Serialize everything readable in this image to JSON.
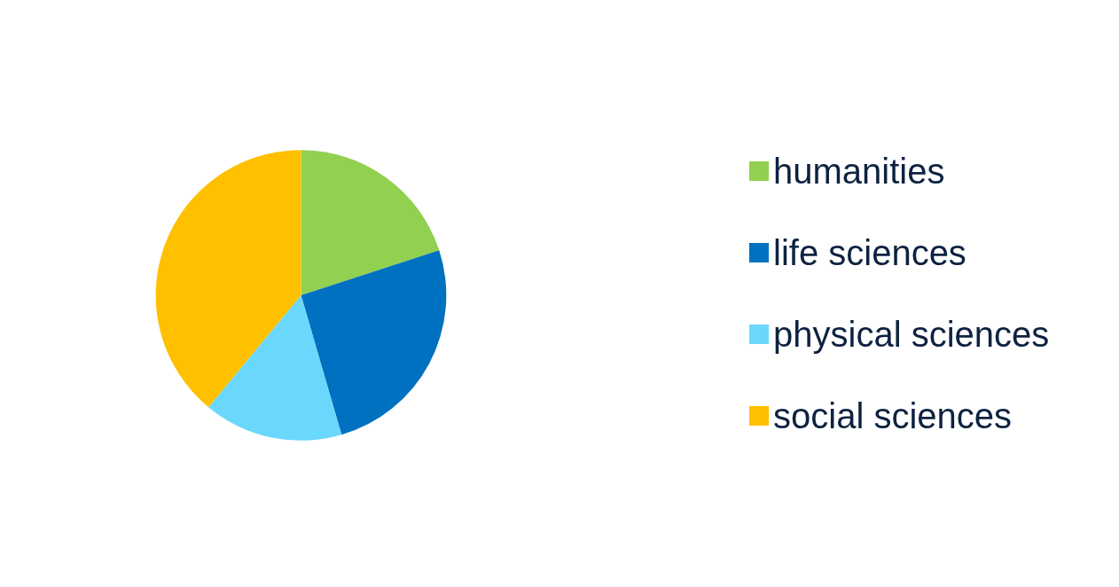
{
  "chart_data": {
    "type": "pie",
    "categories": [
      "humanities",
      "life sciences",
      "physical sciences",
      "social sciences"
    ],
    "values": [
      20,
      25.5,
      15.5,
      39
    ],
    "colors": [
      "#92d050",
      "#0070c0",
      "#6ad8fc",
      "#ffc000"
    ],
    "legend": "right"
  }
}
